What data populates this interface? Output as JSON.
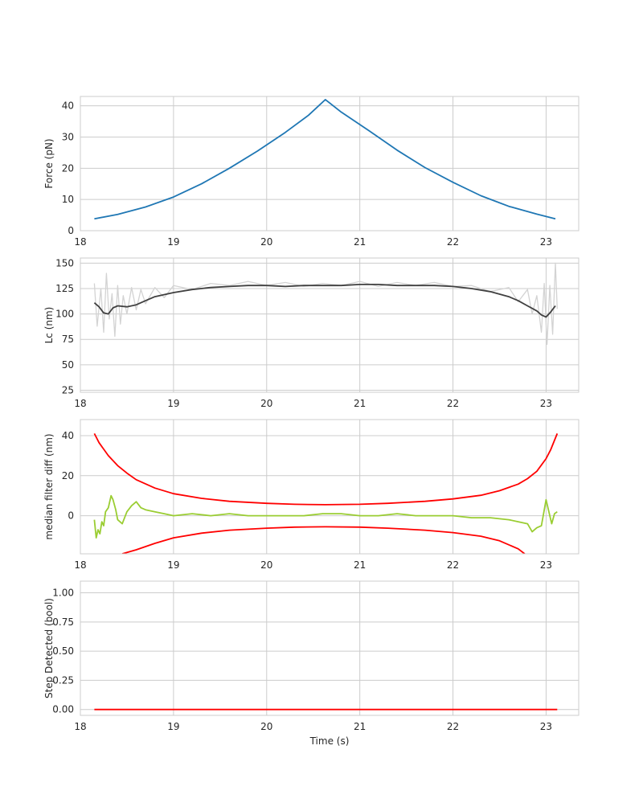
{
  "chart_data": [
    {
      "type": "line",
      "xlabel": "",
      "ylabel": "Force (pN)",
      "xlim": [
        18.0,
        23.35
      ],
      "ylim": [
        0,
        43
      ],
      "xticks": [
        18,
        19,
        20,
        21,
        22,
        23
      ],
      "yticks": [
        0,
        10,
        20,
        30,
        40
      ],
      "grid": true,
      "series": [
        {
          "color": "#1f77b4",
          "x": [
            18.15,
            18.4,
            18.7,
            19.0,
            19.3,
            19.6,
            19.9,
            20.2,
            20.45,
            20.63,
            20.8,
            21.1,
            21.4,
            21.7,
            22.0,
            22.3,
            22.6,
            22.9,
            23.1
          ],
          "y": [
            3.8,
            5.2,
            7.6,
            10.8,
            15.0,
            20.0,
            25.5,
            31.5,
            37.0,
            42.0,
            38.0,
            32.0,
            25.8,
            20.2,
            15.5,
            11.2,
            7.8,
            5.3,
            3.8
          ]
        }
      ]
    },
    {
      "type": "line",
      "xlabel": "",
      "ylabel": "Lc (nm)",
      "xlim": [
        18.0,
        23.35
      ],
      "ylim": [
        23,
        155
      ],
      "xticks": [
        18,
        19,
        20,
        21,
        22,
        23
      ],
      "yticks": [
        25,
        50,
        75,
        100,
        125,
        150
      ],
      "grid": true,
      "series": [
        {
          "color": "#d3d3d3",
          "x": [
            18.15,
            18.18,
            18.22,
            18.25,
            18.28,
            18.31,
            18.34,
            18.37,
            18.4,
            18.43,
            18.46,
            18.5,
            18.55,
            18.6,
            18.65,
            18.7,
            18.8,
            18.9,
            19.0,
            19.2,
            19.4,
            19.6,
            19.8,
            20.0,
            20.2,
            20.4,
            20.6,
            20.8,
            21.0,
            21.2,
            21.4,
            21.6,
            21.8,
            22.0,
            22.2,
            22.4,
            22.6,
            22.7,
            22.8,
            22.85,
            22.9,
            22.95,
            22.98,
            23.01,
            23.04,
            23.07,
            23.1,
            23.12
          ],
          "y": [
            130,
            88,
            125,
            82,
            140,
            95,
            120,
            78,
            128,
            90,
            118,
            100,
            126,
            104,
            124,
            110,
            126,
            116,
            128,
            124,
            130,
            128,
            132,
            128,
            131,
            127,
            130,
            128,
            132,
            127,
            131,
            128,
            131,
            127,
            128,
            122,
            126,
            112,
            124,
            100,
            118,
            82,
            130,
            70,
            128,
            80,
            150,
            105
          ]
        },
        {
          "color": "#404040",
          "x": [
            18.15,
            18.2,
            18.25,
            18.3,
            18.35,
            18.4,
            18.5,
            18.6,
            18.7,
            18.8,
            19.0,
            19.2,
            19.4,
            19.6,
            19.8,
            20.0,
            20.2,
            20.4,
            20.6,
            20.8,
            21.0,
            21.2,
            21.4,
            21.6,
            21.8,
            22.0,
            22.2,
            22.4,
            22.6,
            22.7,
            22.8,
            22.9,
            22.95,
            23.0,
            23.05,
            23.1
          ],
          "y": [
            111,
            107,
            101,
            100,
            106,
            108,
            107,
            109,
            113,
            117,
            121,
            124,
            126,
            127,
            128,
            128,
            127,
            128,
            128,
            128,
            129,
            129,
            128,
            128,
            128,
            127,
            125,
            122,
            117,
            113,
            108,
            103,
            99,
            97,
            102,
            108
          ]
        }
      ]
    },
    {
      "type": "line",
      "xlabel": "",
      "ylabel": "median filter diff (nm)",
      "xlim": [
        18.0,
        23.35
      ],
      "ylim": [
        -19,
        48
      ],
      "xticks": [
        18,
        19,
        20,
        21,
        22,
        23
      ],
      "yticks": [
        0,
        20,
        40
      ],
      "grid": true,
      "series": [
        {
          "color": "#ff0000",
          "x": [
            18.15,
            18.2,
            18.3,
            18.4,
            18.5,
            18.6,
            18.8,
            19.0,
            19.3,
            19.6,
            20.0,
            20.3,
            20.63,
            21.0,
            21.3,
            21.7,
            22.0,
            22.3,
            22.5,
            22.7,
            22.8,
            22.9,
            23.0,
            23.05,
            23.12
          ],
          "y": [
            41,
            36.5,
            30.0,
            25.0,
            21.3,
            18.0,
            13.8,
            11.0,
            8.7,
            7.2,
            6.2,
            5.7,
            5.5,
            5.7,
            6.2,
            7.2,
            8.4,
            10.2,
            12.5,
            15.8,
            18.5,
            22.2,
            28.5,
            33.0,
            41.0
          ]
        },
        {
          "color": "#ff0000",
          "x": [
            18.45,
            18.6,
            18.8,
            19.0,
            19.3,
            19.6,
            20.0,
            20.3,
            20.63,
            21.0,
            21.3,
            21.7,
            22.0,
            22.3,
            22.5,
            22.7,
            22.77
          ],
          "y": [
            -19,
            -17.0,
            -13.8,
            -11.0,
            -8.7,
            -7.2,
            -6.2,
            -5.7,
            -5.5,
            -5.7,
            -6.2,
            -7.2,
            -8.4,
            -10.2,
            -12.5,
            -16.5,
            -19
          ]
        },
        {
          "color": "#9acd32",
          "x": [
            18.15,
            18.17,
            18.19,
            18.21,
            18.23,
            18.25,
            18.27,
            18.3,
            18.33,
            18.35,
            18.38,
            18.4,
            18.45,
            18.5,
            18.55,
            18.6,
            18.65,
            18.7,
            18.8,
            18.9,
            19.0,
            19.2,
            19.4,
            19.6,
            19.8,
            20.0,
            20.2,
            20.4,
            20.6,
            20.8,
            21.0,
            21.2,
            21.4,
            21.6,
            21.8,
            22.0,
            22.2,
            22.4,
            22.6,
            22.7,
            22.8,
            22.85,
            22.9,
            22.95,
            23.0,
            23.03,
            23.06,
            23.09,
            23.12
          ],
          "y": [
            -2,
            -11,
            -7,
            -9,
            -3,
            -5,
            2,
            4,
            10,
            8,
            3,
            -2,
            -4,
            2,
            5,
            7,
            4,
            3,
            2,
            1,
            0,
            1,
            0,
            1,
            0,
            0,
            0,
            0,
            1,
            1,
            0,
            0,
            1,
            0,
            0,
            0,
            -1,
            -1,
            -2,
            -3,
            -4,
            -8,
            -6,
            -5,
            8,
            2,
            -4,
            1,
            2
          ]
        }
      ]
    },
    {
      "type": "line",
      "xlabel": "Time (s)",
      "ylabel": "Step Detected (bool)",
      "xlim": [
        18.0,
        23.35
      ],
      "ylim": [
        -0.05,
        1.1
      ],
      "xticks": [
        18,
        19,
        20,
        21,
        22,
        23
      ],
      "yticks": [
        "0.00",
        "0.25",
        "0.50",
        "0.75",
        "1.00"
      ],
      "grid": true,
      "series": [
        {
          "color": "#ff0000",
          "x": [
            18.15,
            23.12
          ],
          "y": [
            0,
            0
          ]
        }
      ]
    }
  ]
}
